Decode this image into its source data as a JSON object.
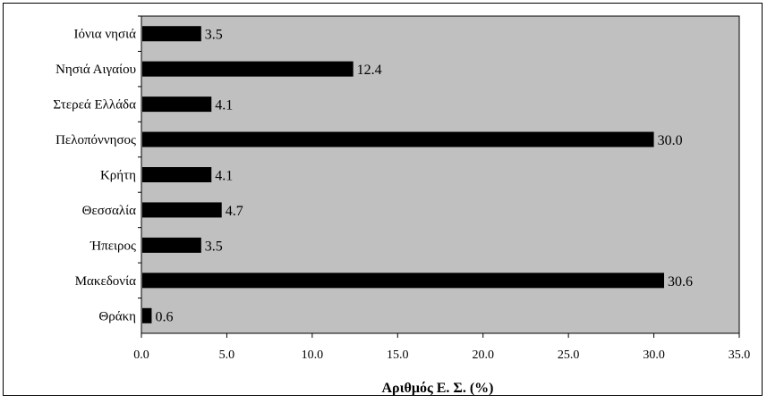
{
  "chart_data": {
    "type": "bar",
    "orientation": "horizontal",
    "categories": [
      "Ιόνια νησιά",
      "Νησιά Αιγαίου",
      "Στερεά  Ελλάδα",
      "Πελοπόννησος",
      "Κρήτη",
      "Θεσσαλία",
      "Ήπειρος",
      "Μακεδονία",
      "Θράκη"
    ],
    "values": [
      3.5,
      12.4,
      4.1,
      30.0,
      4.1,
      4.7,
      3.5,
      30.6,
      0.6
    ],
    "value_labels": [
      "3.5",
      "12.4",
      "4.1",
      "30.0",
      "4.1",
      "4.7",
      "3.5",
      "30.6",
      "0.6"
    ],
    "title": "",
    "xlabel": "Αριθμός Ε. Σ.  (%)",
    "ylabel": "",
    "xlim": [
      0,
      35
    ],
    "xticks": [
      "0.0",
      "5.0",
      "10.0",
      "15.0",
      "20.0",
      "25.0",
      "30.0",
      "35.0"
    ],
    "grid": false,
    "legend": "none",
    "colors": {
      "plot_background": "#c0c0c0",
      "bar": "#000000",
      "border": "#000000"
    }
  }
}
